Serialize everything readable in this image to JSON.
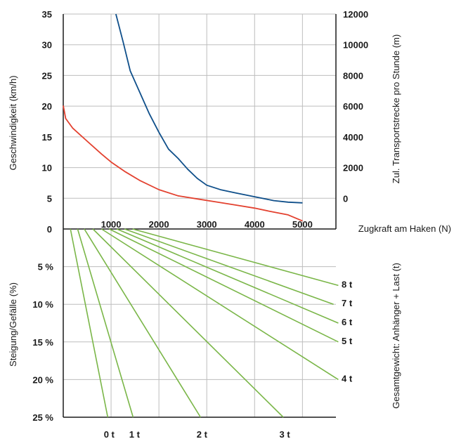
{
  "chart_data": [
    {
      "type": "line",
      "x_ticks": [
        1000,
        2000,
        3000,
        4000,
        5000
      ],
      "xlim": [
        0,
        5700
      ],
      "xlabel": "Zugkraft am Haken (N)",
      "y_left": {
        "label": "Geschwindigkeit (km/h)",
        "ticks": [
          0,
          5,
          10,
          15,
          20,
          25,
          30,
          35
        ],
        "lim": [
          0,
          35
        ]
      },
      "y_right": {
        "label": "Zul. Transportstrecke pro Stunde (m)",
        "ticks": [
          0,
          2000,
          4000,
          6000,
          8000,
          10000,
          12000
        ],
        "lim": [
          -2000,
          12000
        ]
      },
      "grid": true,
      "series": [
        {
          "axis": "left",
          "color": "#e3412f",
          "x": [
            0,
            50,
            200,
            500,
            800,
            1000,
            1300,
            1600,
            2000,
            2400,
            2800,
            3200,
            3600,
            4000,
            4300,
            4700,
            5000
          ],
          "y": [
            20.1,
            18.0,
            16.4,
            14.3,
            12.2,
            10.9,
            9.3,
            7.9,
            6.4,
            5.4,
            4.9,
            4.4,
            3.9,
            3.4,
            2.9,
            2.3,
            1.3
          ]
        },
        {
          "axis": "right",
          "color": "#0f4f8a",
          "x": [
            1100,
            1250,
            1400,
            1600,
            1800,
            2000,
            2200,
            2400,
            2600,
            2800,
            3000,
            3300,
            3600,
            4000,
            4400,
            4700,
            5000
          ],
          "y": [
            12000,
            10200,
            8300,
            6900,
            5500,
            4300,
            3200,
            2600,
            1900,
            1300,
            850,
            550,
            350,
            100,
            -150,
            -250,
            -300
          ]
        }
      ]
    },
    {
      "type": "line",
      "y_ticks": [
        "0",
        "5 %",
        "10 %",
        "15 %",
        "20 %",
        "25 %"
      ],
      "y_tick_values": [
        0,
        5,
        10,
        15,
        20,
        25
      ],
      "ylim": [
        0,
        25
      ],
      "ylabel": "Steigung/Gefälle (%)",
      "right_label": "Gesamtgewicht: Anhänger + Last (t)",
      "grid": true,
      "line_color": "#7ab648",
      "series": [
        {
          "name": "0 t",
          "x": [
            150,
            930
          ],
          "y": [
            0,
            25
          ]
        },
        {
          "name": "1 t",
          "x": [
            300,
            1460
          ],
          "y": [
            0,
            25
          ]
        },
        {
          "name": "2 t",
          "x": [
            440,
            2870
          ],
          "y": [
            0,
            25
          ]
        },
        {
          "name": "3 t",
          "x": [
            620,
            4600
          ],
          "y": [
            0,
            25
          ]
        },
        {
          "name": "4 t",
          "x": [
            800,
            5750
          ],
          "y": [
            0,
            20
          ]
        },
        {
          "name": "5 t",
          "x": [
            960,
            5750
          ],
          "y": [
            0,
            15
          ]
        },
        {
          "name": "6 t",
          "x": [
            1120,
            5750
          ],
          "y": [
            0,
            12.5
          ]
        },
        {
          "name": "7 t",
          "x": [
            1280,
            5650
          ],
          "y": [
            0,
            10
          ]
        },
        {
          "name": "8 t",
          "x": [
            1450,
            5750
          ],
          "y": [
            0,
            7.5
          ]
        }
      ],
      "bottom_labels": [
        "0 t",
        "1 t",
        "2 t",
        "3 t"
      ],
      "right_labels": [
        "8 t",
        "7 t",
        "6 t",
        "5 t",
        "4 t"
      ]
    }
  ]
}
